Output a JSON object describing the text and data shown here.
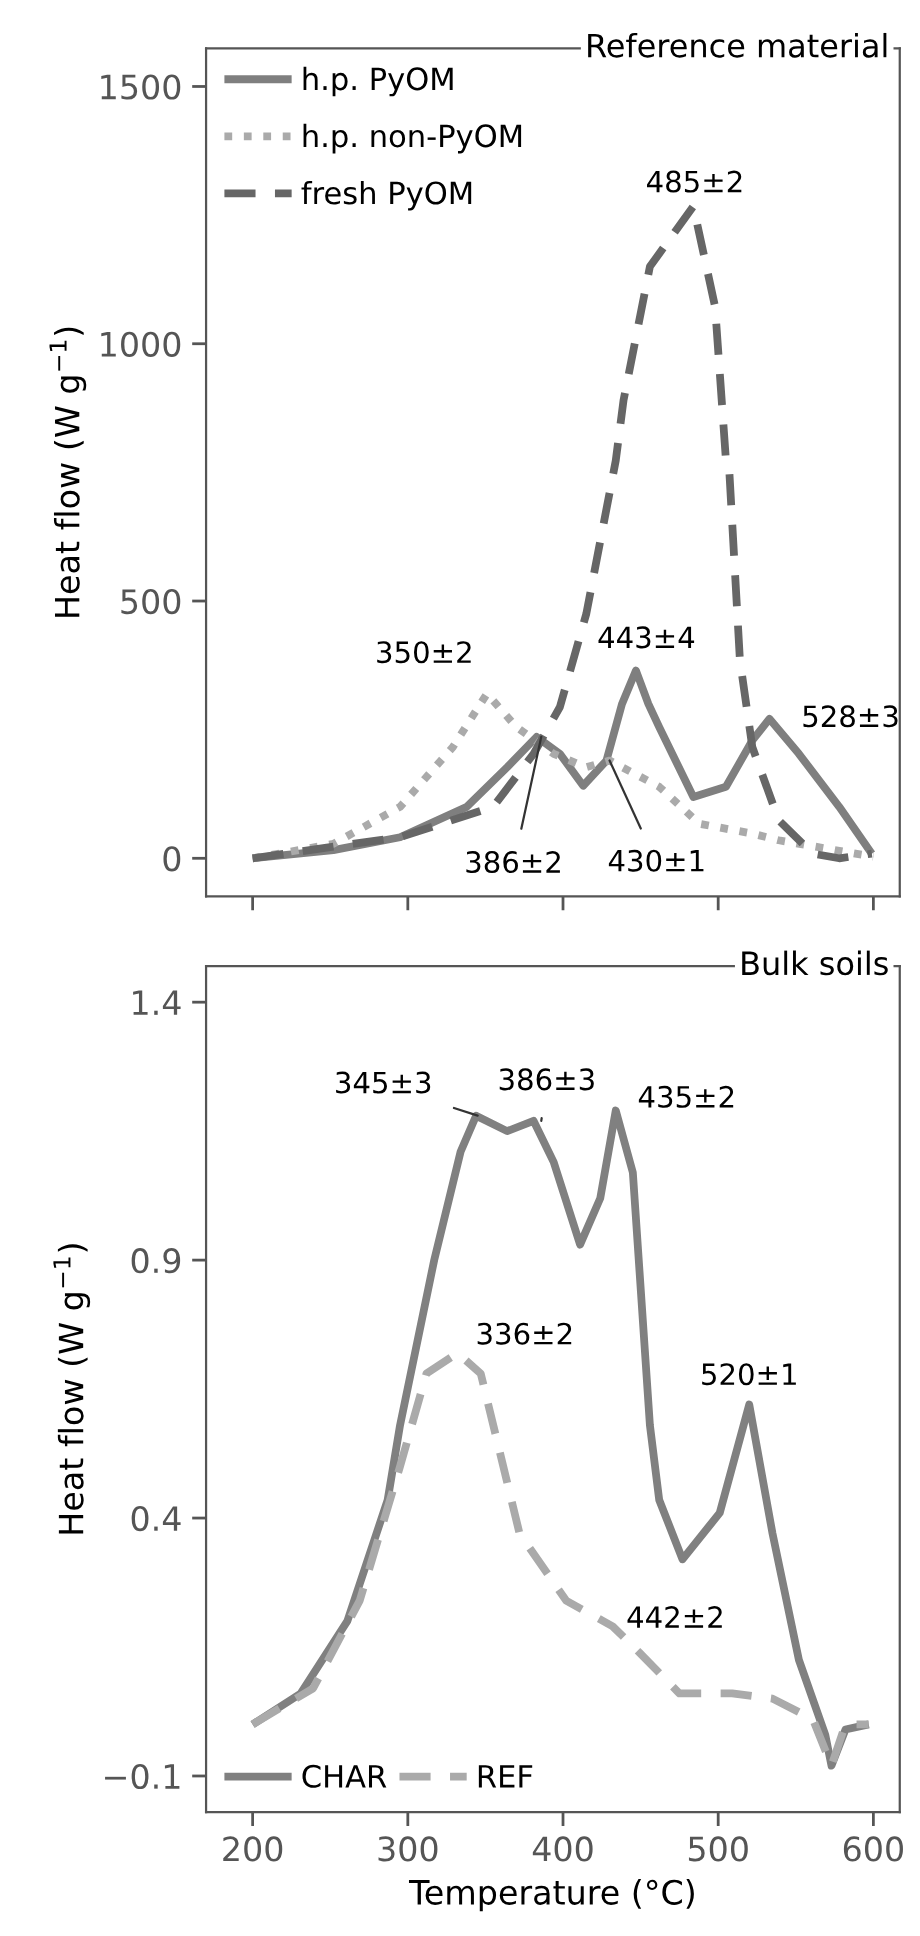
{
  "chart_data": [
    {
      "type": "line",
      "title": "Reference material",
      "ylabel": "Heat flow (W g$^{−1}$)",
      "xlim": [
        170,
        617
      ],
      "ylim": [
        -74,
        1574
      ],
      "xticks": [
        200,
        300,
        400,
        500,
        600
      ],
      "yticks": [
        0,
        500,
        1000,
        1500
      ],
      "tick_labels": "y",
      "grid": false,
      "legend": "top left",
      "marker": "none",
      "series": [
        {
          "name": "h.p. PyOM",
          "color": "#7f7f7f",
          "line_style": "solid",
          "x": [
            200,
            252,
            295,
            338,
            364,
            383,
            398,
            413,
            428,
            438,
            447,
            455,
            462,
            484,
            505,
            522,
            533,
            552,
            578,
            599
          ],
          "values": [
            0,
            16,
            41,
            100,
            177,
            236,
            203,
            141,
            190,
            300,
            365,
            300,
            255,
            119,
            139,
            229,
            271,
            203,
            100,
            9
          ]
        },
        {
          "name": "h.p. non-PyOM",
          "color": "#aaaaaa",
          "line_style": "dotted",
          "x": [
            200,
            252,
            295,
            329,
            351,
            370,
            394,
            415,
            430,
            462,
            488,
            522,
            539,
            600
          ],
          "values": [
            0,
            28,
            100,
            216,
            320,
            255,
            203,
            177,
            190,
            139,
            67,
            48,
            35,
            3
          ]
        },
        {
          "name": "fresh PyOM",
          "color": "#666666",
          "line_style": "dashed",
          "x": [
            200,
            295,
            355,
            381,
            398,
            415,
            434,
            439,
            456,
            484,
            498,
            505,
            507,
            514,
            522,
            539,
            561,
            578,
            599
          ],
          "values": [
            0,
            41,
            100,
            203,
            294,
            475,
            773,
            890,
            1150,
            1267,
            1072,
            773,
            761,
            385,
            216,
            74,
            9,
            0,
            9
          ]
        }
      ],
      "annotations": [
        {
          "text": "485±2",
          "x": 485,
          "y": 1267
        },
        {
          "text": "350±2",
          "x": 350,
          "y": 320
        },
        {
          "text": "443±4",
          "x": 443,
          "y": 365
        },
        {
          "text": "528±3",
          "x": 528,
          "y": 271
        },
        {
          "text": "386±2",
          "x": 386,
          "y": 236
        },
        {
          "text": "430±1",
          "x": 430,
          "y": 190
        }
      ]
    },
    {
      "type": "line",
      "title": "Bulk soils",
      "ylabel": "Heat flow (W g$^{−1}$)",
      "xlabel": "Temperature (°C)",
      "xlim": [
        170,
        617
      ],
      "ylim": [
        -0.17,
        1.47
      ],
      "xticks": [
        200,
        300,
        400,
        500,
        600
      ],
      "yticks": [
        -0.1,
        0.4,
        0.9,
        1.4
      ],
      "grid": false,
      "legend": "bottom left",
      "marker": "none",
      "series": [
        {
          "name": "CHAR",
          "color": "#808080",
          "line_style": "solid",
          "x": [
            200,
            231,
            261,
            287,
            295,
            317,
            334,
            344,
            364,
            381,
            394,
            411,
            424,
            434,
            445,
            456,
            462,
            477,
            501,
            520,
            535,
            552,
            569,
            573,
            582,
            597
          ],
          "values": [
            0.0,
            0.06,
            0.2,
            0.435,
            0.58,
            0.9,
            1.11,
            1.18,
            1.15,
            1.17,
            1.09,
            0.93,
            1.02,
            1.19,
            1.07,
            0.58,
            0.435,
            0.32,
            0.41,
            0.62,
            0.37,
            0.125,
            -0.02,
            -0.08,
            -0.01,
            0.0
          ]
        },
        {
          "name": "REF",
          "color": "#aaaaaa",
          "line_style": "dashed",
          "x": [
            200,
            239,
            269,
            295,
            312,
            332,
            347,
            372,
            402,
            432,
            449,
            475,
            509,
            535,
            561,
            573,
            582,
            597
          ],
          "values": [
            0.0,
            0.07,
            0.24,
            0.5,
            0.68,
            0.72,
            0.68,
            0.37,
            0.24,
            0.19,
            0.14,
            0.06,
            0.06,
            0.05,
            0.01,
            -0.08,
            0.0,
            0.0
          ]
        }
      ],
      "annotations": [
        {
          "text": "345±3",
          "x": 345,
          "y": 1.18
        },
        {
          "text": "386±3",
          "x": 386,
          "y": 1.17
        },
        {
          "text": "435±2",
          "x": 435,
          "y": 1.19
        },
        {
          "text": "336±2",
          "x": 336,
          "y": 0.72
        },
        {
          "text": "520±1",
          "x": 520,
          "y": 0.62
        },
        {
          "text": "442±2",
          "x": 442,
          "y": 0.16
        }
      ]
    }
  ]
}
